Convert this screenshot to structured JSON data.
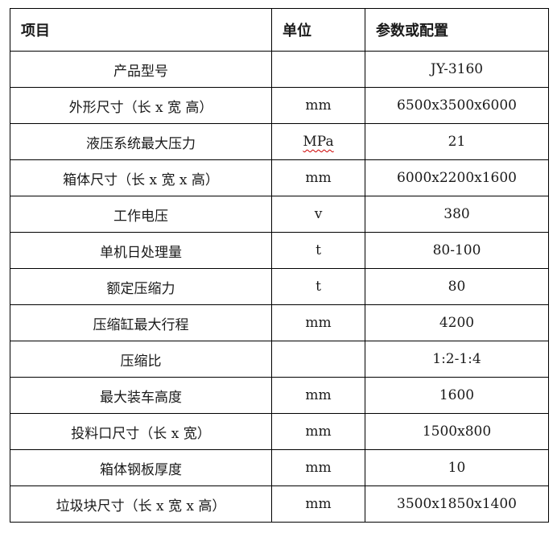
{
  "page": {
    "background_color": "#ffffff",
    "text_color": "#1a1a1a",
    "border_color": "#000000",
    "spell_error_color": "#cc0000"
  },
  "table": {
    "headers": [
      {
        "label": "项目"
      },
      {
        "label": "单位"
      },
      {
        "label": "参数或配置"
      }
    ],
    "rows": [
      {
        "item": "产品型号",
        "unit": "",
        "value": "JY-3160"
      },
      {
        "item": "外形尺寸（长 x 宽 高）",
        "unit": "mm",
        "value": "6500x3500x6000"
      },
      {
        "item": "液压系统最大压力",
        "unit": "MPa",
        "value": "21",
        "unit_spell_error": true
      },
      {
        "item": "箱体尺寸（长 x 宽 x 高）",
        "unit": "mm",
        "value": "6000x2200x1600"
      },
      {
        "item": "工作电压",
        "unit": "v",
        "value": "380"
      },
      {
        "item": "单机日处理量",
        "unit": "t",
        "value": "80-100"
      },
      {
        "item": "额定压缩力",
        "unit": "t",
        "value": "80"
      },
      {
        "item": "压缩缸最大行程",
        "unit": "mm",
        "value": "4200"
      },
      {
        "item": "压缩比",
        "unit": "",
        "value": "1:2-1:4"
      },
      {
        "item": "最大装车高度",
        "unit": "mm",
        "value": "1600"
      },
      {
        "item": "投料口尺寸（长 x 宽）",
        "unit": "mm",
        "value": "1500x800"
      },
      {
        "item": "箱体钢板厚度",
        "unit": "mm",
        "value": "10"
      },
      {
        "item": "垃圾块尺寸（长 x 宽 x 高）",
        "unit": "mm",
        "value": "3500x1850x1400"
      }
    ]
  }
}
